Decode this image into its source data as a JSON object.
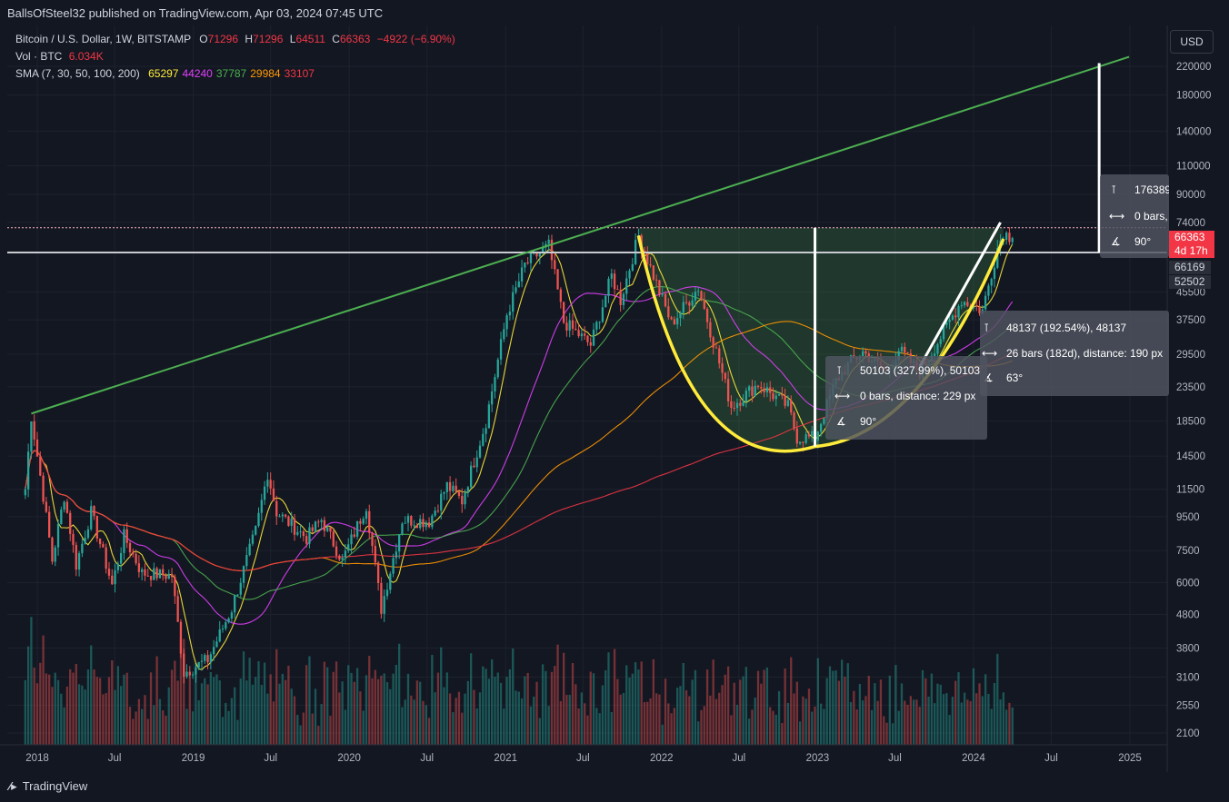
{
  "header": {
    "publisher": "BallsOfSteel32 published on TradingView.com, Apr 03, 2024 07:45 UTC"
  },
  "legend": {
    "symbol": "Bitcoin / U.S. Dollar, 1W, BITSTAMP",
    "o_label": "O",
    "o_value": "71296",
    "h_label": "H",
    "h_value": "71296",
    "l_label": "L",
    "l_value": "64511",
    "c_label": "C",
    "c_value": "66363",
    "change": "−4922 (−6.90%)",
    "vol_label": "Vol · BTC",
    "vol_value": "6.034K",
    "sma_label": "SMA (7, 30, 50, 100, 200)",
    "sma_values": [
      "65297",
      "44240",
      "37787",
      "29984",
      "33107"
    ],
    "sma_colors": [
      "#ffeb3b",
      "#e040fb",
      "#4caf50",
      "#ff9800",
      "#f23645"
    ]
  },
  "currency_button": "USD",
  "footer": {
    "brand": "TradingView"
  },
  "price_tags": {
    "last_price": "66363",
    "countdown": "4d 17h",
    "level_1": "66169",
    "level_2": "52502"
  },
  "measure_boxes": {
    "right": {
      "range": "176389",
      "bars": "0 bars,",
      "angle": "90°"
    },
    "middle": {
      "range": "48137 (192.54%), 48137",
      "bars": "26 bars (182d), distance: 190 px",
      "angle": "63°"
    },
    "left": {
      "range": "50103 (327.99%), 50103",
      "bars": "0 bars, distance: 229 px",
      "angle": "90°"
    }
  },
  "colors": {
    "background": "#131722",
    "up": "#26a69a",
    "down": "#ef5350",
    "trendline": "#4caf50",
    "cup_curve": "#ffeb3b",
    "measure_line": "#ffffff"
  },
  "chart_data": {
    "type": "candlestick",
    "title": "Bitcoin / U.S. Dollar, 1W, BITSTAMP",
    "xlabel": "",
    "ylabel": "",
    "scale": "log",
    "ylim": [
      1900,
      260000
    ],
    "y_ticks": [
      220000,
      180000,
      140000,
      110000,
      90000,
      74000,
      45500,
      37500,
      29500,
      23500,
      18500,
      14500,
      11500,
      9500,
      7500,
      6000,
      4800,
      3800,
      3100,
      2550,
      2100
    ],
    "x_ticks": [
      "2018",
      "Jul",
      "2019",
      "Jul",
      "2020",
      "Jul",
      "2021",
      "Jul",
      "2022",
      "Jul",
      "2023",
      "Jul",
      "2024",
      "Jul",
      "2025"
    ],
    "x_tick_dates": [
      "2018-01-01",
      "2018-07-01",
      "2019-01-01",
      "2019-07-01",
      "2020-01-01",
      "2020-07-01",
      "2021-01-01",
      "2021-07-01",
      "2022-01-01",
      "2022-07-01",
      "2023-01-01",
      "2023-07-01",
      "2024-01-01",
      "2024-07-01",
      "2025-01-01"
    ],
    "price_anchors": [
      [
        "2017-12-04",
        11500
      ],
      [
        "2017-12-18",
        19200
      ],
      [
        "2018-01-15",
        11000
      ],
      [
        "2018-02-05",
        7000
      ],
      [
        "2018-03-05",
        11000
      ],
      [
        "2018-04-02",
        6800
      ],
      [
        "2018-05-07",
        9800
      ],
      [
        "2018-06-25",
        5900
      ],
      [
        "2018-07-23",
        8300
      ],
      [
        "2018-09-03",
        6400
      ],
      [
        "2018-11-12",
        6300
      ],
      [
        "2018-12-10",
        3200
      ],
      [
        "2019-02-04",
        3500
      ],
      [
        "2019-04-01",
        5000
      ],
      [
        "2019-05-27",
        8600
      ],
      [
        "2019-06-24",
        12900
      ],
      [
        "2019-07-15",
        9800
      ],
      [
        "2019-09-23",
        8200
      ],
      [
        "2019-10-28",
        9300
      ],
      [
        "2019-12-16",
        7000
      ],
      [
        "2020-02-10",
        10300
      ],
      [
        "2020-03-16",
        5000
      ],
      [
        "2020-05-04",
        9300
      ],
      [
        "2020-07-06",
        9200
      ],
      [
        "2020-08-17",
        11800
      ],
      [
        "2020-09-21",
        10600
      ],
      [
        "2020-11-16",
        18500
      ],
      [
        "2021-01-04",
        39000
      ],
      [
        "2021-02-15",
        55000
      ],
      [
        "2021-04-12",
        63000
      ],
      [
        "2021-05-17",
        37000
      ],
      [
        "2021-07-19",
        31500
      ],
      [
        "2021-09-06",
        51000
      ],
      [
        "2021-09-27",
        43000
      ],
      [
        "2021-11-08",
        67500
      ],
      [
        "2022-01-24",
        36500
      ],
      [
        "2022-03-28",
        47000
      ],
      [
        "2022-05-09",
        30000
      ],
      [
        "2022-06-13",
        20500
      ],
      [
        "2022-08-15",
        24000
      ],
      [
        "2022-10-24",
        20500
      ],
      [
        "2022-11-14",
        16500
      ],
      [
        "2022-12-26",
        16500
      ],
      [
        "2023-02-13",
        24500
      ],
      [
        "2023-03-20",
        28000
      ],
      [
        "2023-04-17",
        30000
      ],
      [
        "2023-06-12",
        26000
      ],
      [
        "2023-07-10",
        30500
      ],
      [
        "2023-08-28",
        26000
      ],
      [
        "2023-10-23",
        34500
      ],
      [
        "2023-12-04",
        43000
      ],
      [
        "2024-01-22",
        40000
      ],
      [
        "2024-02-26",
        62000
      ],
      [
        "2024-03-11",
        69000
      ],
      [
        "2024-04-01",
        66363
      ]
    ],
    "sma_series": [
      {
        "name": "SMA 7",
        "period": 7,
        "color": "#ffeb3b"
      },
      {
        "name": "SMA 30",
        "period": 30,
        "color": "#e040fb"
      },
      {
        "name": "SMA 50",
        "period": 50,
        "color": "#4caf50"
      },
      {
        "name": "SMA 100",
        "period": 100,
        "color": "#ff9800"
      },
      {
        "name": "SMA 200",
        "period": 200,
        "color": "#f23645"
      }
    ],
    "annotations": {
      "trendline": [
        [
          "2017-12-18",
          19500
        ],
        [
          "2024-12-30",
          235000
        ]
      ],
      "horizontal_levels": [
        71296,
        60000
      ],
      "cup": {
        "start": [
          "2021-11-08",
          67500
        ],
        "bottom": [
          "2022-12-26",
          15500
        ],
        "end": [
          "2024-03-11",
          66000
        ]
      },
      "vertical_measures": [
        {
          "date": "2022-12-26",
          "from": 15500,
          "to": 71296
        },
        {
          "date": "2024-10-21",
          "from": 60000,
          "to": 225000
        }
      ],
      "rising_line": [
        [
          "2023-08-28",
          27000
        ],
        [
          "2024-03-04",
          74000
        ]
      ]
    }
  }
}
